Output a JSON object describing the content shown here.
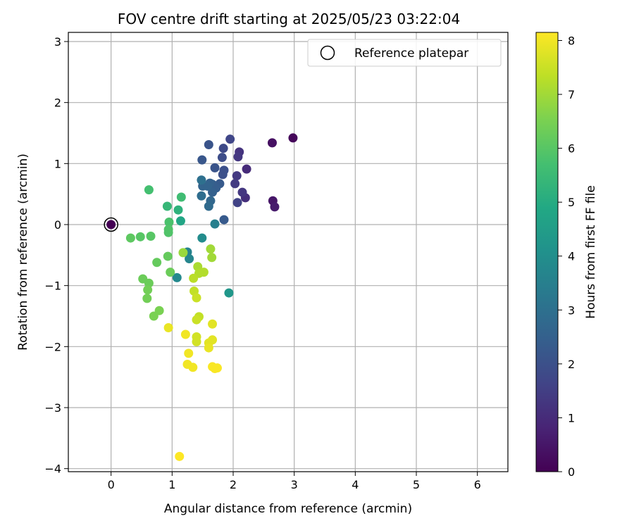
{
  "chart_data": {
    "type": "scatter",
    "title": "FOV centre drift starting at 2025/05/23 03:22:04",
    "xlabel": "Angular distance from reference (arcmin)",
    "ylabel": "Rotation from reference (arcmin)",
    "colorbar_label": "Hours from first FF file",
    "xlim": [
      -0.7,
      6.5
    ],
    "ylim": [
      -4.05,
      3.15
    ],
    "x_ticks": [
      0,
      1,
      2,
      3,
      4,
      5,
      6
    ],
    "y_ticks": [
      -4,
      -3,
      -2,
      -1,
      0,
      1,
      2,
      3
    ],
    "colorbar_range": [
      0,
      8.15
    ],
    "colorbar_ticks": [
      0,
      1,
      2,
      3,
      4,
      5,
      6,
      7,
      8
    ],
    "colormap": "viridis",
    "grid": true,
    "legend": {
      "placement": "top-right",
      "entries": [
        "Reference platepar"
      ]
    },
    "reference_point": {
      "x": 0,
      "y": 0,
      "hours": 0
    },
    "points": [
      {
        "x": 2.98,
        "y": 1.42,
        "h": 0.15
      },
      {
        "x": 2.64,
        "y": 1.34,
        "h": 0.35
      },
      {
        "x": 2.65,
        "y": 0.39,
        "h": 0.5
      },
      {
        "x": 2.68,
        "y": 0.29,
        "h": 0.6
      },
      {
        "x": 2.22,
        "y": 0.91,
        "h": 1.0
      },
      {
        "x": 2.2,
        "y": 0.44,
        "h": 1.1
      },
      {
        "x": 2.15,
        "y": 0.53,
        "h": 1.3
      },
      {
        "x": 2.1,
        "y": 1.19,
        "h": 1.2
      },
      {
        "x": 2.08,
        "y": 1.11,
        "h": 1.3
      },
      {
        "x": 2.06,
        "y": 0.8,
        "h": 1.35
      },
      {
        "x": 2.03,
        "y": 0.67,
        "h": 1.4
      },
      {
        "x": 2.07,
        "y": 0.36,
        "h": 1.6
      },
      {
        "x": 1.95,
        "y": 1.4,
        "h": 1.7
      },
      {
        "x": 1.84,
        "y": 1.25,
        "h": 1.8
      },
      {
        "x": 1.82,
        "y": 1.1,
        "h": 1.9
      },
      {
        "x": 1.85,
        "y": 0.89,
        "h": 2.0
      },
      {
        "x": 1.83,
        "y": 0.82,
        "h": 2.0
      },
      {
        "x": 1.7,
        "y": 0.93,
        "h": 2.1
      },
      {
        "x": 1.6,
        "y": 1.31,
        "h": 2.1
      },
      {
        "x": 1.49,
        "y": 1.06,
        "h": 2.2
      },
      {
        "x": 1.85,
        "y": 0.08,
        "h": 2.3
      },
      {
        "x": 1.78,
        "y": 0.67,
        "h": 2.3
      },
      {
        "x": 1.72,
        "y": 0.6,
        "h": 2.4
      },
      {
        "x": 1.66,
        "y": 0.66,
        "h": 2.4
      },
      {
        "x": 1.62,
        "y": 0.68,
        "h": 2.5
      },
      {
        "x": 1.66,
        "y": 0.53,
        "h": 2.5
      },
      {
        "x": 1.5,
        "y": 0.63,
        "h": 2.6
      },
      {
        "x": 1.58,
        "y": 0.63,
        "h": 2.6
      },
      {
        "x": 1.63,
        "y": 0.39,
        "h": 2.7
      },
      {
        "x": 1.6,
        "y": 0.3,
        "h": 2.8
      },
      {
        "x": 1.48,
        "y": 0.47,
        "h": 2.9
      },
      {
        "x": 1.48,
        "y": 0.73,
        "h": 3.0
      },
      {
        "x": 1.7,
        "y": 0.01,
        "h": 3.5
      },
      {
        "x": 1.25,
        "y": -0.45,
        "h": 3.6
      },
      {
        "x": 1.28,
        "y": -0.56,
        "h": 3.7
      },
      {
        "x": 1.08,
        "y": -0.87,
        "h": 3.8
      },
      {
        "x": 1.49,
        "y": -0.22,
        "h": 3.9
      },
      {
        "x": 1.93,
        "y": -1.12,
        "h": 4.3
      },
      {
        "x": 1.14,
        "y": 0.06,
        "h": 4.8
      },
      {
        "x": 1.1,
        "y": 0.24,
        "h": 5.2
      },
      {
        "x": 0.92,
        "y": 0.3,
        "h": 5.4
      },
      {
        "x": 1.15,
        "y": 0.45,
        "h": 5.6
      },
      {
        "x": 0.62,
        "y": 0.57,
        "h": 5.7
      },
      {
        "x": 0.95,
        "y": 0.04,
        "h": 5.8
      },
      {
        "x": 0.94,
        "y": -0.08,
        "h": 5.9
      },
      {
        "x": 0.94,
        "y": -0.13,
        "h": 5.9
      },
      {
        "x": 0.48,
        "y": -0.2,
        "h": 6.0
      },
      {
        "x": 0.65,
        "y": -0.19,
        "h": 6.0
      },
      {
        "x": 0.32,
        "y": -0.22,
        "h": 6.1
      },
      {
        "x": 0.93,
        "y": -0.52,
        "h": 6.2
      },
      {
        "x": 0.75,
        "y": -0.62,
        "h": 6.2
      },
      {
        "x": 0.97,
        "y": -0.78,
        "h": 6.3
      },
      {
        "x": 0.52,
        "y": -0.89,
        "h": 6.3
      },
      {
        "x": 0.62,
        "y": -0.96,
        "h": 6.3
      },
      {
        "x": 0.6,
        "y": -1.07,
        "h": 6.4
      },
      {
        "x": 0.59,
        "y": -1.21,
        "h": 6.4
      },
      {
        "x": 0.79,
        "y": -1.41,
        "h": 6.5
      },
      {
        "x": 0.7,
        "y": -1.5,
        "h": 6.5
      },
      {
        "x": 1.18,
        "y": -0.46,
        "h": 6.9
      },
      {
        "x": 1.63,
        "y": -0.4,
        "h": 7.0
      },
      {
        "x": 1.65,
        "y": -0.54,
        "h": 7.0
      },
      {
        "x": 1.42,
        "y": -0.69,
        "h": 7.1
      },
      {
        "x": 1.52,
        "y": -0.78,
        "h": 7.2
      },
      {
        "x": 1.44,
        "y": -0.8,
        "h": 7.2
      },
      {
        "x": 1.35,
        "y": -0.88,
        "h": 7.3
      },
      {
        "x": 1.36,
        "y": -1.09,
        "h": 7.4
      },
      {
        "x": 1.4,
        "y": -1.2,
        "h": 7.5
      },
      {
        "x": 1.44,
        "y": -1.51,
        "h": 7.4
      },
      {
        "x": 1.4,
        "y": -1.56,
        "h": 7.5
      },
      {
        "x": 1.4,
        "y": -1.84,
        "h": 7.6
      },
      {
        "x": 1.4,
        "y": -1.92,
        "h": 7.6
      },
      {
        "x": 1.66,
        "y": -1.63,
        "h": 7.8
      },
      {
        "x": 1.6,
        "y": -1.94,
        "h": 7.8
      },
      {
        "x": 1.66,
        "y": -1.89,
        "h": 7.8
      },
      {
        "x": 1.6,
        "y": -2.02,
        "h": 7.9
      },
      {
        "x": 0.94,
        "y": -1.69,
        "h": 7.9
      },
      {
        "x": 1.22,
        "y": -1.8,
        "h": 8.0
      },
      {
        "x": 1.27,
        "y": -2.11,
        "h": 8.0
      },
      {
        "x": 1.25,
        "y": -2.29,
        "h": 8.0
      },
      {
        "x": 1.34,
        "y": -2.34,
        "h": 8.0
      },
      {
        "x": 1.66,
        "y": -2.33,
        "h": 8.1
      },
      {
        "x": 1.7,
        "y": -2.36,
        "h": 8.1
      },
      {
        "x": 1.74,
        "y": -2.35,
        "h": 8.1
      },
      {
        "x": 1.12,
        "y": -3.8,
        "h": 8.15
      }
    ]
  }
}
